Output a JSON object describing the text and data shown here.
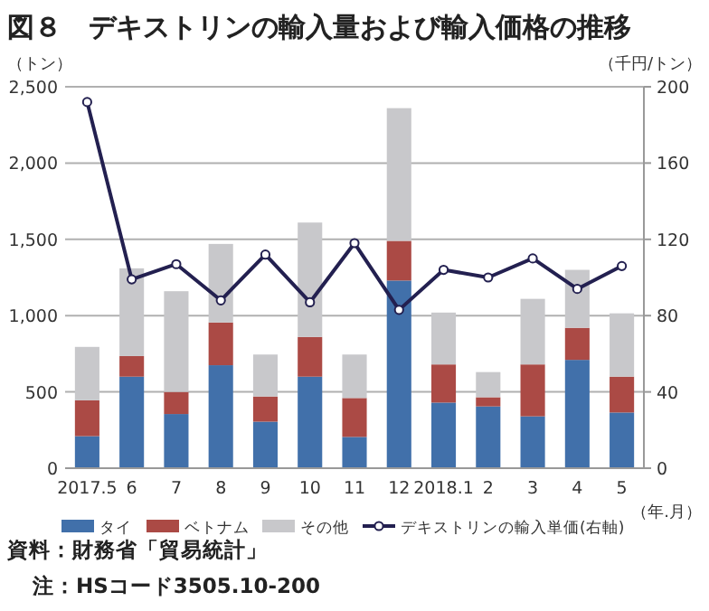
{
  "chart_data": {
    "type": "bar",
    "stacked": true,
    "title": "図８　デキストリンの輸入量および輸入価格の推移",
    "ylabel": "（トン）",
    "y2label": "（千円/トン）",
    "xlabel": "（年.月）",
    "categories": [
      "2017.5",
      "6",
      "7",
      "8",
      "9",
      "10",
      "11",
      "12",
      "2018.1",
      "2",
      "3",
      "4",
      "5"
    ],
    "series": [
      {
        "name": "タイ",
        "color": "#4170aa",
        "values": [
          210,
          600,
          355,
          675,
          305,
          600,
          205,
          1230,
          430,
          405,
          340,
          710,
          365
        ]
      },
      {
        "name": "ベトナム",
        "color": "#ab4a45",
        "values": [
          235,
          135,
          145,
          280,
          165,
          260,
          255,
          260,
          250,
          60,
          340,
          210,
          235
        ]
      },
      {
        "name": "その他",
        "color": "#c8c8cb",
        "values": [
          350,
          575,
          660,
          515,
          275,
          750,
          285,
          870,
          340,
          165,
          430,
          380,
          415
        ]
      },
      {
        "name": "デキストリンの輸入単価(右軸)",
        "type": "line",
        "axis": "y2",
        "color": "#232050",
        "marker": "circle",
        "values": [
          192,
          99,
          107,
          88,
          112,
          87,
          118,
          83,
          104,
          100,
          110,
          94,
          106
        ]
      }
    ],
    "ylim": [
      0,
      2500
    ],
    "yticks": [
      0,
      500,
      {
        "value": 1000,
        "label": "1,000"
      },
      {
        "value": 1500,
        "label": "1,500"
      },
      {
        "value": 2000,
        "label": "2,000"
      },
      {
        "value": 2500,
        "label": "2,500"
      }
    ],
    "y2lim": [
      0,
      200
    ],
    "y2ticks": [
      0,
      40,
      80,
      120,
      160,
      200
    ],
    "grid": "y",
    "legend": "bottom",
    "annotations": [
      "資料：財務省「貿易統計」",
      "注：HSコード3505.10-200"
    ]
  }
}
